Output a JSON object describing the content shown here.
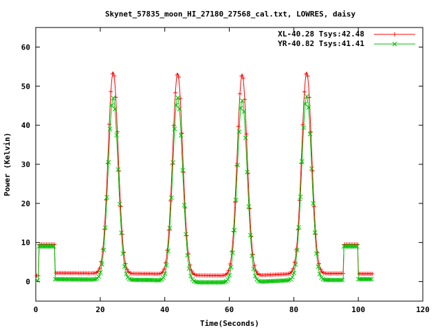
{
  "chart_data": {
    "type": "line",
    "title": "Skynet_57835_moon_HI_27180_27568_cal.txt, LOWRES, daisy",
    "xlabel": "Time(Seconds)",
    "ylabel": "Power (Kelvin)",
    "xlim": [
      0,
      120
    ],
    "ylim": [
      -5,
      65
    ],
    "xticks": [
      0,
      20,
      40,
      60,
      80,
      100,
      120
    ],
    "yticks": [
      0,
      10,
      20,
      30,
      40,
      50,
      60
    ],
    "grid": false,
    "legend_position": "top-right",
    "peaks": [
      {
        "center": 24.0,
        "xl_peak": 53.0,
        "yr_peak": 48.0
      },
      {
        "center": 44.0,
        "xl_peak": 53.0,
        "yr_peak": 48.5
      },
      {
        "center": 64.0,
        "xl_peak": 53.0,
        "yr_peak": 48.0
      },
      {
        "center": 84.0,
        "xl_peak": 53.0,
        "yr_peak": 48.5
      }
    ],
    "series": [
      {
        "name": "XL-40.28 Tsys:42.48",
        "color": "#ff0000",
        "marker": "plus",
        "step_segments": [
          [
            0.3,
            1.0,
            1.5
          ],
          [
            1.0,
            6.0,
            9.5
          ],
          [
            6.0,
            104.5,
            2.0
          ]
        ],
        "cal_high": [
          95.5,
          100.0,
          9.5
        ],
        "baseline_values": [
          2.2,
          2.1,
          2.0,
          1.6,
          1.5,
          2.0,
          2.1
        ]
      },
      {
        "name": "YR-40.82 Tsys:41.41",
        "color": "#00c000",
        "marker": "cross",
        "step_segments": [
          [
            0.3,
            1.0,
            0.3
          ],
          [
            1.0,
            6.0,
            9.0
          ],
          [
            6.0,
            104.5,
            0.6
          ]
        ],
        "cal_high": [
          95.5,
          100.0,
          9.0
        ],
        "baseline_values": [
          0.6,
          0.5,
          0.4,
          -0.2,
          -0.2,
          0.4,
          0.4
        ]
      }
    ]
  }
}
